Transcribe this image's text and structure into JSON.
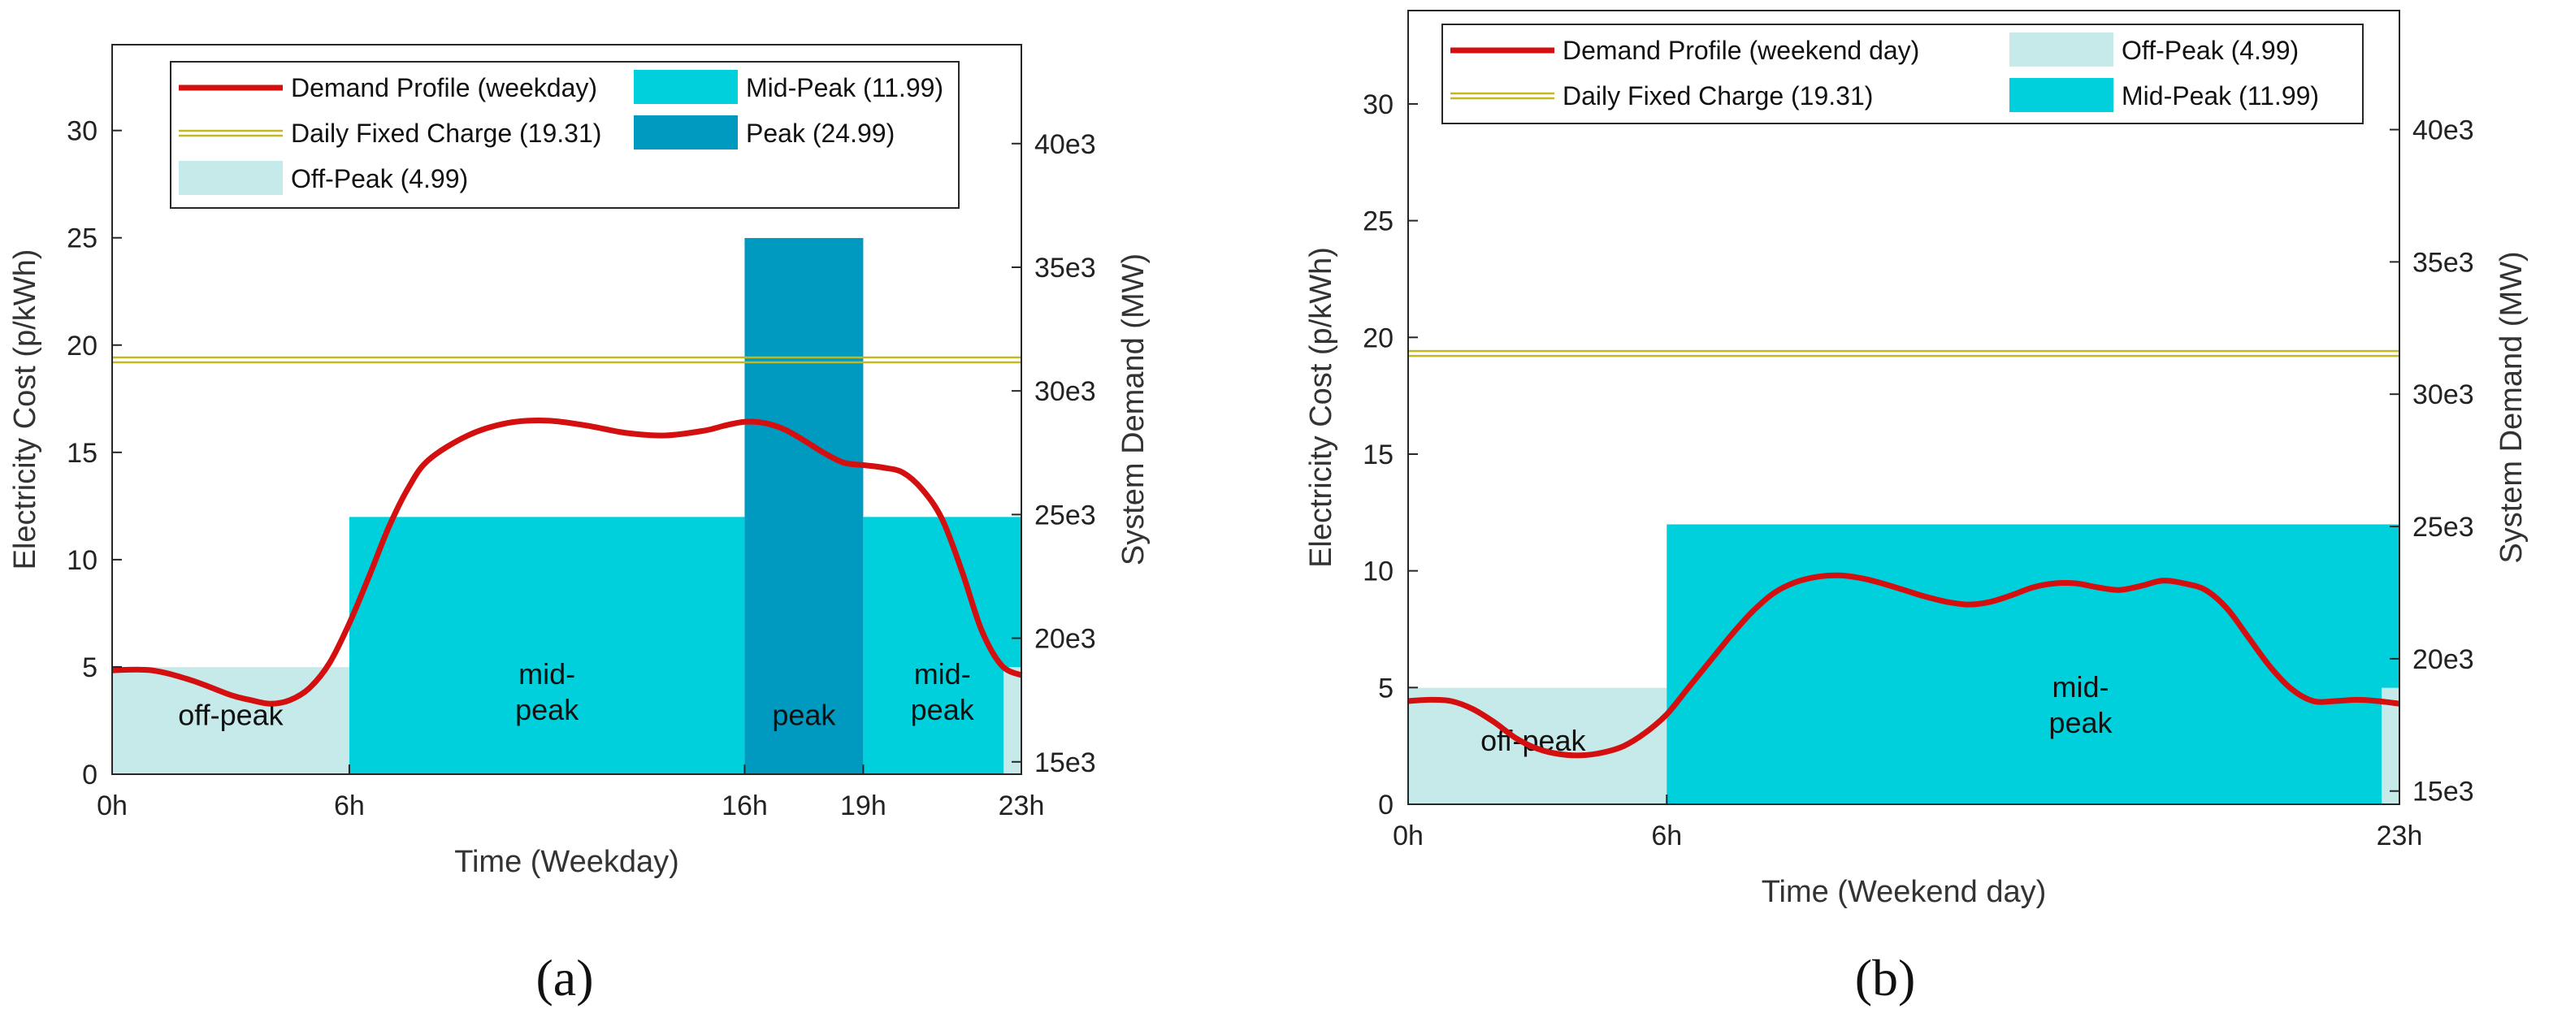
{
  "chart_data": [
    {
      "type": "area",
      "panel_label": "(a)",
      "title": "",
      "xlabel": "Time (Weekday)",
      "ylabel": "Electricity Cost (p/kWh)",
      "y2label": "System Demand (MW)",
      "xlim": [
        0,
        23
      ],
      "ylim": [
        0,
        34
      ],
      "y2lim": [
        14500,
        44000
      ],
      "xticks": [
        0,
        6,
        16,
        19,
        23
      ],
      "xticklabels": [
        "0h",
        "6h",
        "16h",
        "19h",
        "23h"
      ],
      "yticks": [
        0,
        5,
        10,
        15,
        20,
        25,
        30
      ],
      "y2ticks": [
        15000,
        20000,
        25000,
        30000,
        35000,
        40000
      ],
      "y2ticklabels": [
        "15e3",
        "20e3",
        "25e3",
        "30e3",
        "35e3",
        "40e3"
      ],
      "bands": [
        {
          "start": 0,
          "end": 6,
          "value": 4.99,
          "kind": "off-peak"
        },
        {
          "start": 6,
          "end": 16,
          "value": 11.99,
          "kind": "mid-peak"
        },
        {
          "start": 16,
          "end": 19,
          "value": 24.99,
          "kind": "peak"
        },
        {
          "start": 19,
          "end": 23,
          "value": 11.99,
          "kind": "mid-peak"
        }
      ],
      "band_labels": [
        {
          "x": 3,
          "y": 2.3,
          "lines": [
            "off-peak"
          ]
        },
        {
          "x": 11,
          "y": 4.2,
          "lines": [
            "mid-",
            "peak"
          ]
        },
        {
          "x": 17.5,
          "y": 2.3,
          "lines": [
            "peak"
          ]
        },
        {
          "x": 21,
          "y": 4.2,
          "lines": [
            "mid-",
            "peak"
          ]
        }
      ],
      "fixed_charge": 19.31,
      "demand_profile": {
        "name": "Demand Profile (weekday)",
        "x": [
          0,
          1,
          2,
          3,
          3.5,
          4,
          4.5,
          5,
          5.5,
          6,
          6.5,
          7,
          7.5,
          8,
          9,
          10,
          11,
          12,
          13,
          14,
          15,
          15.5,
          16,
          16.5,
          17,
          17.5,
          18,
          18.5,
          19,
          19.5,
          20,
          20.5,
          21,
          21.5,
          22,
          22.5,
          23
        ],
        "y": [
          18700,
          18700,
          18300,
          17700,
          17500,
          17350,
          17500,
          18000,
          19000,
          20600,
          22500,
          24500,
          26100,
          27200,
          28200,
          28700,
          28800,
          28600,
          28300,
          28200,
          28400,
          28600,
          28750,
          28700,
          28450,
          28000,
          27500,
          27100,
          27000,
          26900,
          26700,
          26000,
          24800,
          22700,
          20300,
          18900,
          18500
        ]
      },
      "legend": [
        {
          "label": "Demand Profile (weekday)",
          "type": "line",
          "color": "#d40f0f"
        },
        {
          "label": "Mid-Peak (11.99)",
          "type": "patch",
          "color": "#00d0dc"
        },
        {
          "label": "Daily Fixed Charge (19.31)",
          "type": "line",
          "color": "#c4b820"
        },
        {
          "label": "Peak (24.99)",
          "type": "patch",
          "color": "#009ac0"
        },
        {
          "label": "Off-Peak (4.99)",
          "type": "patch",
          "color": "#c6eaea"
        }
      ]
    },
    {
      "type": "area",
      "panel_label": "(b)",
      "title": "",
      "xlabel": "Time (Weekend day)",
      "ylabel": "Electricity Cost (p/kWh)",
      "y2label": "System Demand (MW)",
      "xlim": [
        0,
        23
      ],
      "ylim": [
        0,
        34
      ],
      "y2lim": [
        14500,
        44500
      ],
      "xticks": [
        0,
        6,
        23
      ],
      "xticklabels": [
        "0h",
        "6h",
        "23h"
      ],
      "yticks": [
        0,
        5,
        10,
        15,
        20,
        25,
        30
      ],
      "y2ticks": [
        15000,
        20000,
        25000,
        30000,
        35000,
        40000
      ],
      "y2ticklabels": [
        "15e3",
        "20e3",
        "25e3",
        "30e3",
        "35e3",
        "40e3"
      ],
      "bands": [
        {
          "start": 0,
          "end": 6,
          "value": 4.99,
          "kind": "off-peak"
        },
        {
          "start": 6,
          "end": 23,
          "value": 11.99,
          "kind": "mid-peak"
        }
      ],
      "band_labels": [
        {
          "x": 2.9,
          "y": 2.3,
          "lines": [
            "off-peak"
          ]
        },
        {
          "x": 15.6,
          "y": 4.6,
          "lines": [
            "mid-",
            "peak"
          ]
        }
      ],
      "fixed_charge": 19.31,
      "demand_profile": {
        "name": "Demand Profile (weekend day)",
        "x": [
          0,
          0.5,
          1,
          1.5,
          2,
          2.5,
          3,
          3.5,
          4,
          4.5,
          5,
          5.5,
          6,
          6.5,
          7,
          7.5,
          8,
          8.5,
          9,
          9.5,
          10,
          10.5,
          11,
          11.5,
          12,
          12.5,
          13,
          13.5,
          14,
          14.5,
          15,
          15.5,
          16,
          16.5,
          17,
          17.5,
          18,
          18.5,
          19,
          19.5,
          20,
          20.5,
          21,
          21.5,
          22,
          22.5,
          23
        ],
        "y": [
          18400,
          18450,
          18400,
          18100,
          17600,
          17000,
          16600,
          16400,
          16350,
          16450,
          16700,
          17200,
          17900,
          18900,
          19900,
          20900,
          21800,
          22500,
          22900,
          23100,
          23150,
          23050,
          22850,
          22600,
          22350,
          22150,
          22050,
          22150,
          22400,
          22700,
          22850,
          22850,
          22700,
          22600,
          22750,
          22950,
          22850,
          22600,
          21900,
          20800,
          19700,
          18850,
          18400,
          18400,
          18450,
          18400,
          18300
        ]
      },
      "legend": [
        {
          "label": "Demand Profile (weekend day)",
          "type": "line",
          "color": "#d40f0f"
        },
        {
          "label": "Off-Peak (4.99)",
          "type": "patch",
          "color": "#c6eaea"
        },
        {
          "label": "Daily Fixed Charge (19.31)",
          "type": "line",
          "color": "#c4b820"
        },
        {
          "label": "Mid-Peak (11.99)",
          "type": "patch",
          "color": "#00d0dc"
        }
      ]
    }
  ],
  "colors": {
    "off_peak": "#c6eaea",
    "mid_peak": "#00d0dc",
    "peak": "#009ac0",
    "demand": "#d40f0f",
    "fixed": "#c4b820"
  }
}
